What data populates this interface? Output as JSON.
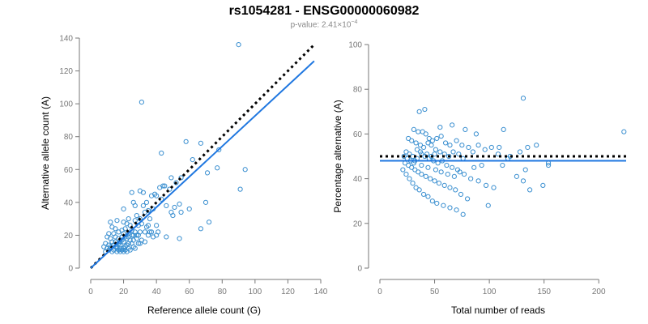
{
  "title": "rs1054281 - ENSG00000060982",
  "subtitle": {
    "prefix": "p-value: 2.41×10",
    "exponent": "−4"
  },
  "colors": {
    "points": "#3a8fd0",
    "fit_line": "#1f77e0",
    "reference_line": "#000000",
    "axis": "#777777"
  },
  "chart_data": [
    {
      "type": "scatter",
      "xlabel": "Reference allele count (G)",
      "ylabel": "Alternative allele count (A)",
      "xlim": [
        0,
        140
      ],
      "ylim": [
        0,
        140
      ],
      "xticks": [
        "0",
        "20",
        "40",
        "60",
        "80",
        "100",
        "120",
        "140"
      ],
      "yticks": [
        "0",
        "20",
        "40",
        "60",
        "80",
        "100",
        "120",
        "140"
      ],
      "fit_line": [
        [
          0,
          0
        ],
        [
          136,
          126
        ]
      ],
      "reference_line": [
        [
          0,
          0
        ],
        [
          136,
          136
        ]
      ],
      "points": [
        [
          90,
          136
        ],
        [
          31,
          101
        ],
        [
          78,
          72
        ],
        [
          58,
          77
        ],
        [
          67,
          76
        ],
        [
          43,
          70
        ],
        [
          77,
          61
        ],
        [
          62,
          66
        ],
        [
          94,
          60
        ],
        [
          71,
          58
        ],
        [
          55,
          55
        ],
        [
          49,
          55
        ],
        [
          52,
          52
        ],
        [
          45,
          50
        ],
        [
          44,
          50
        ],
        [
          42,
          49
        ],
        [
          48,
          48
        ],
        [
          91,
          48
        ],
        [
          30,
          47
        ],
        [
          32,
          46
        ],
        [
          25,
          46
        ],
        [
          39,
          45
        ],
        [
          40,
          44
        ],
        [
          37,
          44
        ],
        [
          34,
          40
        ],
        [
          43,
          42
        ],
        [
          46,
          38
        ],
        [
          70,
          40
        ],
        [
          54,
          39
        ],
        [
          60,
          36
        ],
        [
          49,
          34
        ],
        [
          50,
          32
        ],
        [
          51,
          37
        ],
        [
          55,
          34
        ],
        [
          26,
          40
        ],
        [
          27,
          38
        ],
        [
          32,
          38
        ],
        [
          35,
          35
        ],
        [
          38,
          36
        ],
        [
          33,
          34
        ],
        [
          20,
          36
        ],
        [
          28,
          32
        ],
        [
          23,
          30
        ],
        [
          30,
          30
        ],
        [
          36,
          30
        ],
        [
          27,
          29
        ],
        [
          12,
          28
        ],
        [
          16,
          29
        ],
        [
          20,
          28
        ],
        [
          24,
          26
        ],
        [
          29,
          26
        ],
        [
          31,
          27
        ],
        [
          35,
          26
        ],
        [
          40,
          26
        ],
        [
          22,
          27
        ],
        [
          13,
          25
        ],
        [
          15,
          24
        ],
        [
          19,
          23
        ],
        [
          17,
          22
        ],
        [
          21,
          24
        ],
        [
          25,
          23
        ],
        [
          27,
          22
        ],
        [
          33,
          22
        ],
        [
          36,
          22
        ],
        [
          11,
          21
        ],
        [
          14,
          21
        ],
        [
          20,
          21
        ],
        [
          23,
          21
        ],
        [
          26,
          20
        ],
        [
          29,
          20
        ],
        [
          37,
          22
        ],
        [
          41,
          22
        ],
        [
          10,
          19
        ],
        [
          12,
          18
        ],
        [
          15,
          19
        ],
        [
          17,
          18
        ],
        [
          19,
          19
        ],
        [
          22,
          18
        ],
        [
          24,
          17
        ],
        [
          26,
          17
        ],
        [
          13,
          16
        ],
        [
          15,
          16
        ],
        [
          18,
          16
        ],
        [
          20,
          16
        ],
        [
          23,
          15
        ],
        [
          25,
          15
        ],
        [
          28,
          18
        ],
        [
          9,
          15
        ],
        [
          11,
          14
        ],
        [
          14,
          14
        ],
        [
          16,
          13
        ],
        [
          18,
          14
        ],
        [
          21,
          13
        ],
        [
          23,
          12
        ],
        [
          26,
          13
        ],
        [
          10,
          12
        ],
        [
          12,
          12
        ],
        [
          14,
          11
        ],
        [
          17,
          11
        ],
        [
          19,
          11
        ],
        [
          21,
          11
        ],
        [
          24,
          11
        ],
        [
          27,
          12
        ],
        [
          30,
          15
        ],
        [
          16,
          12
        ],
        [
          18,
          12
        ],
        [
          20,
          12
        ],
        [
          22,
          14
        ],
        [
          12,
          13
        ],
        [
          15,
          13
        ],
        [
          17,
          15
        ],
        [
          19,
          17
        ],
        [
          21,
          19
        ],
        [
          23,
          19
        ],
        [
          25,
          20
        ],
        [
          28,
          20
        ],
        [
          46,
          19
        ],
        [
          54,
          18
        ],
        [
          72,
          28
        ],
        [
          67,
          24
        ],
        [
          40,
          20
        ],
        [
          38,
          19
        ],
        [
          35,
          20
        ],
        [
          31,
          17
        ],
        [
          29,
          15
        ],
        [
          33,
          16
        ],
        [
          34,
          25
        ],
        [
          30,
          22
        ],
        [
          9,
          10
        ],
        [
          11,
          11
        ],
        [
          13,
          10
        ],
        [
          16,
          10
        ],
        [
          18,
          10
        ],
        [
          20,
          10
        ],
        [
          22,
          10
        ],
        [
          8,
          13
        ]
      ]
    },
    {
      "type": "scatter",
      "xlabel": "Total number of reads",
      "ylabel": "Percentage alternative (A)",
      "xlim": [
        0,
        225
      ],
      "ylim": [
        0,
        100
      ],
      "xticks": [
        "0",
        "50",
        "100",
        "150",
        "200"
      ],
      "yticks": [
        "0",
        "20",
        "40",
        "60",
        "80",
        "100"
      ],
      "xtick_values": [
        0,
        50,
        100,
        150,
        200
      ],
      "ytick_values": [
        0,
        20,
        40,
        60,
        80,
        100
      ],
      "fit_level": 48,
      "reference_level": 50,
      "points": [
        [
          131,
          76
        ],
        [
          223,
          61
        ],
        [
          41,
          71
        ],
        [
          36,
          70
        ],
        [
          66,
          64
        ],
        [
          55,
          63
        ],
        [
          78,
          62
        ],
        [
          88,
          60
        ],
        [
          113,
          62
        ],
        [
          31,
          62
        ],
        [
          35,
          61
        ],
        [
          39,
          61
        ],
        [
          42,
          60
        ],
        [
          45,
          58
        ],
        [
          48,
          57
        ],
        [
          52,
          58
        ],
        [
          56,
          59
        ],
        [
          60,
          56
        ],
        [
          64,
          55
        ],
        [
          70,
          57
        ],
        [
          75,
          55
        ],
        [
          81,
          54
        ],
        [
          85,
          52
        ],
        [
          90,
          55
        ],
        [
          96,
          53
        ],
        [
          102,
          54
        ],
        [
          26,
          58
        ],
        [
          29,
          57
        ],
        [
          33,
          56
        ],
        [
          37,
          55
        ],
        [
          40,
          54
        ],
        [
          44,
          56
        ],
        [
          47,
          55
        ],
        [
          51,
          53
        ],
        [
          55,
          52
        ],
        [
          59,
          51
        ],
        [
          63,
          50
        ],
        [
          67,
          52
        ],
        [
          72,
          51
        ],
        [
          76,
          49
        ],
        [
          24,
          52
        ],
        [
          27,
          51
        ],
        [
          30,
          50
        ],
        [
          34,
          49
        ],
        [
          38,
          51
        ],
        [
          41,
          50
        ],
        [
          45,
          49
        ],
        [
          49,
          48
        ],
        [
          53,
          47
        ],
        [
          57,
          48
        ],
        [
          61,
          46
        ],
        [
          66,
          45
        ],
        [
          71,
          44
        ],
        [
          77,
          42
        ],
        [
          83,
          40
        ],
        [
          90,
          39
        ],
        [
          97,
          37
        ],
        [
          104,
          36
        ],
        [
          23,
          47
        ],
        [
          26,
          46
        ],
        [
          29,
          45
        ],
        [
          32,
          44
        ],
        [
          35,
          43
        ],
        [
          38,
          42
        ],
        [
          42,
          41
        ],
        [
          46,
          40
        ],
        [
          50,
          39
        ],
        [
          54,
          38
        ],
        [
          59,
          37
        ],
        [
          64,
          36
        ],
        [
          69,
          35
        ],
        [
          74,
          33
        ],
        [
          80,
          31
        ],
        [
          21,
          44
        ],
        [
          24,
          42
        ],
        [
          27,
          40
        ],
        [
          30,
          38
        ],
        [
          33,
          36
        ],
        [
          36,
          35
        ],
        [
          40,
          33
        ],
        [
          44,
          32
        ],
        [
          48,
          30
        ],
        [
          52,
          29
        ],
        [
          58,
          28
        ],
        [
          64,
          27
        ],
        [
          70,
          26
        ],
        [
          76,
          24
        ],
        [
          99,
          28
        ],
        [
          135,
          54
        ],
        [
          131,
          39
        ],
        [
          133,
          44
        ],
        [
          137,
          35
        ],
        [
          143,
          55
        ],
        [
          149,
          37
        ],
        [
          154,
          47
        ],
        [
          125,
          41
        ],
        [
          117,
          49
        ],
        [
          112,
          46
        ],
        [
          108,
          51
        ],
        [
          22,
          50
        ],
        [
          25,
          49
        ],
        [
          28,
          48
        ],
        [
          31,
          47
        ],
        [
          34,
          53
        ],
        [
          37,
          52
        ],
        [
          43,
          51
        ],
        [
          47,
          50
        ],
        [
          50,
          51
        ],
        [
          32,
          48
        ],
        [
          38,
          46
        ],
        [
          44,
          45
        ],
        [
          51,
          44
        ],
        [
          56,
          43
        ],
        [
          62,
          42
        ],
        [
          68,
          41
        ],
        [
          73,
          43
        ],
        [
          86,
          45
        ],
        [
          93,
          46
        ],
        [
          154,
          46
        ],
        [
          109,
          54
        ],
        [
          119,
          50
        ],
        [
          128,
          52
        ]
      ]
    }
  ]
}
